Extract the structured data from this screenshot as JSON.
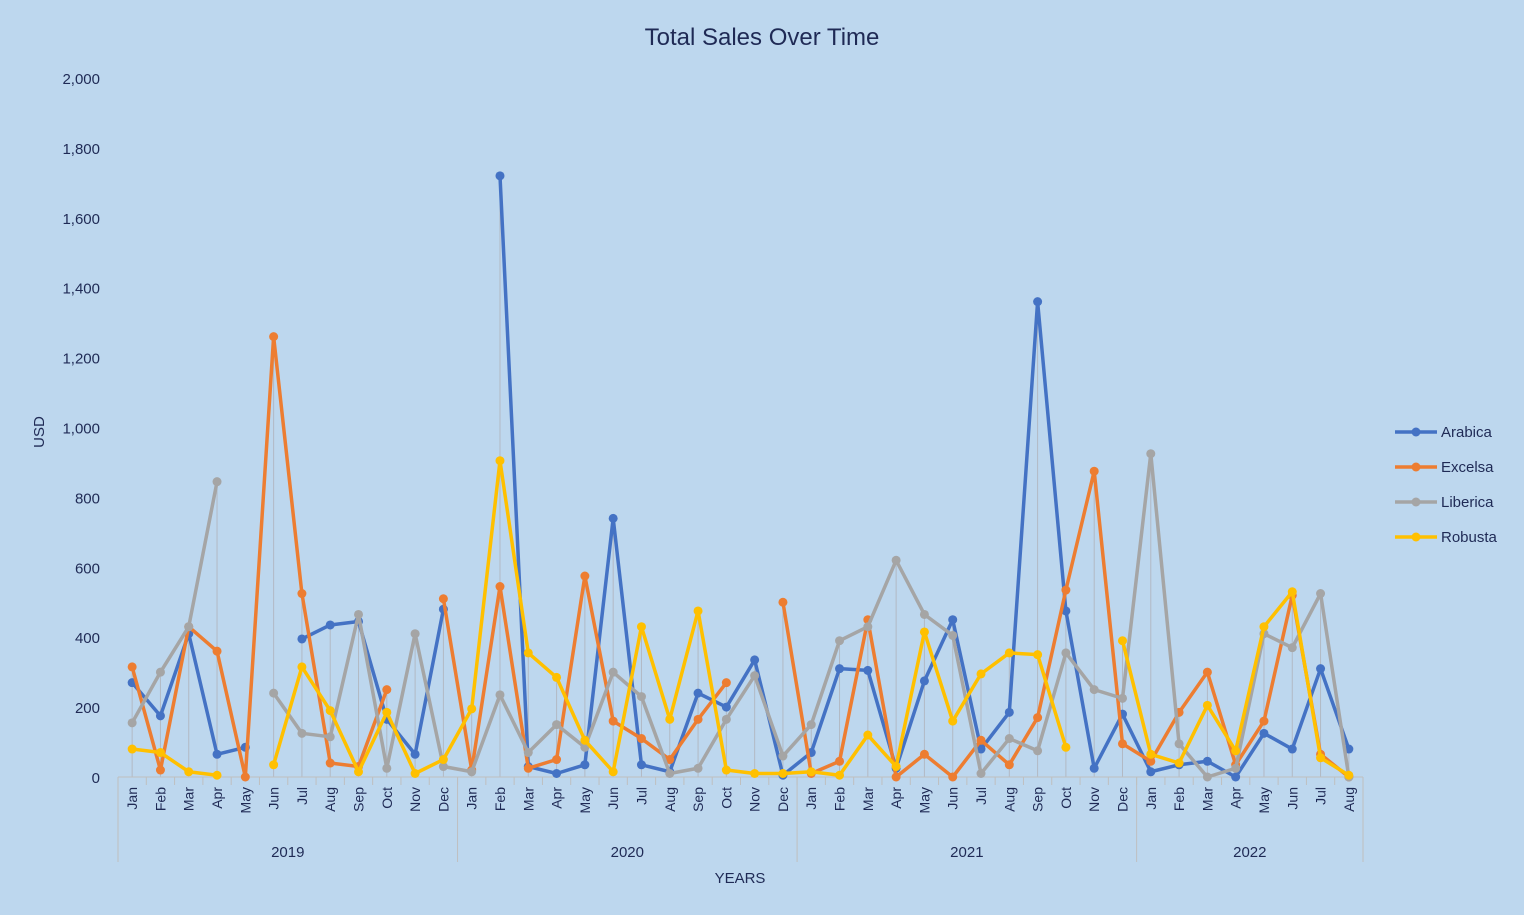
{
  "chart_data": {
    "type": "line",
    "title": "Total Sales Over Time",
    "xlabel": "YEARS",
    "ylabel": "USD",
    "ylim": [
      0,
      2000
    ],
    "y_ticks": [
      "0",
      "200",
      "400",
      "600",
      "800",
      "1,000",
      "1,200",
      "1,400",
      "1,600",
      "1,800",
      "2,000"
    ],
    "y_tick_values": [
      0,
      200,
      400,
      600,
      800,
      1000,
      1200,
      1400,
      1600,
      1800,
      2000
    ],
    "grid": false,
    "drop_lines": true,
    "legend_position": "right",
    "years": [
      {
        "label": "2019",
        "months": 12
      },
      {
        "label": "2020",
        "months": 12
      },
      {
        "label": "2021",
        "months": 12
      },
      {
        "label": "2022",
        "months": 8
      }
    ],
    "categories": [
      "Jan",
      "Feb",
      "Mar",
      "Apr",
      "May",
      "Jun",
      "Jul",
      "Aug",
      "Sep",
      "Oct",
      "Nov",
      "Dec",
      "Jan",
      "Feb",
      "Mar",
      "Apr",
      "May",
      "Jun",
      "Jul",
      "Aug",
      "Sep",
      "Oct",
      "Nov",
      "Dec",
      "Jan",
      "Feb",
      "Mar",
      "Apr",
      "May",
      "Jun",
      "Jul",
      "Aug",
      "Sep",
      "Oct",
      "Nov",
      "Dec",
      "Jan",
      "Feb",
      "Mar",
      "Apr",
      "May",
      "Jun",
      "Jul",
      "Aug"
    ],
    "series": [
      {
        "name": "Arabica",
        "color": "#4472c4",
        "values": [
          270,
          175,
          410,
          65,
          85,
          null,
          395,
          435,
          445,
          165,
          65,
          480,
          null,
          1720,
          30,
          10,
          35,
          740,
          35,
          15,
          240,
          200,
          335,
          5,
          70,
          310,
          305,
          25,
          275,
          450,
          80,
          185,
          1360,
          475,
          25,
          180,
          15,
          35,
          45,
          0,
          125,
          80,
          310,
          80
        ]
      },
      {
        "name": "Excelsa",
        "color": "#ed7d31",
        "values": [
          315,
          20,
          430,
          360,
          0,
          1260,
          525,
          40,
          30,
          250,
          null,
          510,
          20,
          545,
          25,
          50,
          575,
          160,
          110,
          50,
          165,
          270,
          null,
          500,
          10,
          45,
          450,
          0,
          65,
          0,
          105,
          35,
          170,
          535,
          875,
          95,
          45,
          185,
          300,
          35,
          160,
          520,
          65,
          0
        ]
      },
      {
        "name": "Liberica",
        "color": "#a5a5a5",
        "values": [
          155,
          300,
          430,
          845,
          null,
          240,
          125,
          115,
          465,
          25,
          410,
          30,
          15,
          235,
          70,
          150,
          85,
          300,
          230,
          10,
          25,
          165,
          290,
          60,
          150,
          390,
          430,
          620,
          465,
          405,
          10,
          110,
          75,
          355,
          250,
          225,
          925,
          95,
          0,
          25,
          410,
          370,
          525,
          0
        ]
      },
      {
        "name": "Robusta",
        "color": "#ffc000",
        "values": [
          80,
          70,
          15,
          5,
          null,
          35,
          315,
          190,
          15,
          185,
          10,
          50,
          195,
          905,
          355,
          285,
          105,
          15,
          430,
          165,
          475,
          20,
          10,
          10,
          15,
          5,
          120,
          30,
          415,
          160,
          295,
          355,
          350,
          85,
          null,
          390,
          65,
          40,
          205,
          75,
          430,
          530,
          55,
          5
        ]
      }
    ]
  }
}
